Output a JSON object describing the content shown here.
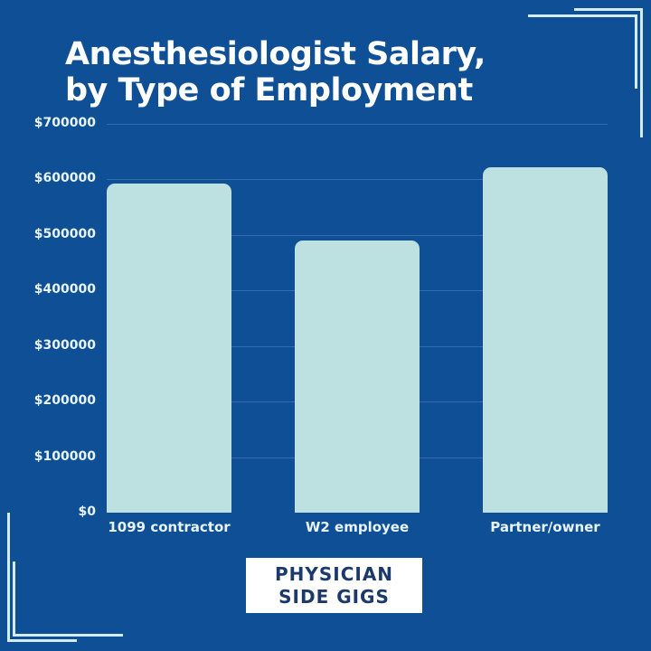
{
  "title": {
    "line1": "Anesthesiologist Salary,",
    "line2": "by Type of Employment"
  },
  "colors": {
    "background": "#0f4f96",
    "bar": "#bde0e0",
    "text": "#ffffff",
    "logo_text": "#1b3a6b",
    "corner_lines": "#d4ecf7"
  },
  "y_axis": {
    "ticks": [
      "$0",
      "$100000",
      "$200000",
      "$300000",
      "$400000",
      "$500000",
      "$600000",
      "$700000"
    ]
  },
  "x_axis": {
    "categories": [
      "1099 contractor",
      "W2 employee",
      "Partner/owner"
    ]
  },
  "logo": {
    "line1": "PHYSICIAN",
    "line2": "SIDE GIGS"
  },
  "chart_data": {
    "type": "bar",
    "title": "Anesthesiologist Salary, by Type of Employment",
    "categories": [
      "1099 contractor",
      "W2 employee",
      "Partner/owner"
    ],
    "values": [
      593000,
      490000,
      622000
    ],
    "xlabel": "",
    "ylabel": "",
    "ylim": [
      0,
      700000
    ],
    "yticks": [
      0,
      100000,
      200000,
      300000,
      400000,
      500000,
      600000,
      700000
    ],
    "ytick_labels": [
      "$0",
      "$100000",
      "$200000",
      "$300000",
      "$400000",
      "$500000",
      "$600000",
      "$700000"
    ],
    "grid": true,
    "legend": null
  }
}
